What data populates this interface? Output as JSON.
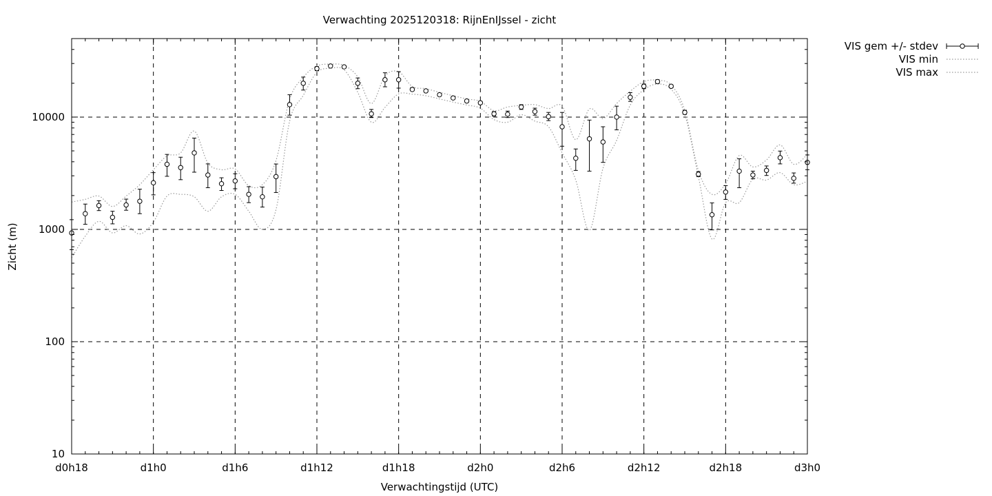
{
  "chart_data": {
    "type": "line",
    "title": "Verwachting 2025120318: RijnEnIJssel - zicht",
    "xlabel": "Verwachtingstijd (UTC)",
    "ylabel": "Zicht (m)",
    "xlim": [
      18,
      72
    ],
    "ylim": [
      10,
      50000
    ],
    "y_scale": "log",
    "grid": true,
    "legend_position": "outside-top-right",
    "x_ticks": [
      {
        "value": 18,
        "label": "d0h18"
      },
      {
        "value": 24,
        "label": "d1h0"
      },
      {
        "value": 30,
        "label": "d1h6"
      },
      {
        "value": 36,
        "label": "d1h12"
      },
      {
        "value": 42,
        "label": "d1h18"
      },
      {
        "value": 48,
        "label": "d2h0"
      },
      {
        "value": 54,
        "label": "d2h6"
      },
      {
        "value": 60,
        "label": "d2h12"
      },
      {
        "value": 66,
        "label": "d2h18"
      },
      {
        "value": 72,
        "label": "d3h0"
      }
    ],
    "y_ticks": [
      {
        "value": 10,
        "label": "10"
      },
      {
        "value": 100,
        "label": "100"
      },
      {
        "value": 1000,
        "label": "1000"
      },
      {
        "value": 10000,
        "label": "10000"
      }
    ],
    "x": [
      18,
      19,
      20,
      21,
      22,
      23,
      24,
      25,
      26,
      27,
      28,
      29,
      30,
      31,
      32,
      33,
      34,
      35,
      36,
      37,
      38,
      39,
      40,
      41,
      42,
      43,
      44,
      45,
      46,
      47,
      48,
      49,
      50,
      51,
      52,
      53,
      54,
      55,
      56,
      57,
      58,
      59,
      60,
      61,
      62,
      63,
      64,
      65,
      66,
      67,
      68,
      69,
      70,
      71,
      72
    ],
    "series": [
      {
        "name": "VIS gem +/- stdev",
        "style": "points-with-errorbars",
        "color": "#000000",
        "mean": [
          930,
          1380,
          1630,
          1280,
          1650,
          1780,
          2600,
          3800,
          3550,
          4800,
          3050,
          2550,
          2700,
          2050,
          1950,
          2950,
          12900,
          20000,
          27000,
          28500,
          28000,
          20000,
          10700,
          21500,
          21500,
          17600,
          17100,
          15800,
          14800,
          13900,
          13400,
          10700,
          10600,
          12300,
          11200,
          10100,
          8200,
          4300,
          6400,
          6000,
          10000,
          15000,
          18800,
          20700,
          18800,
          11000,
          3100,
          1350,
          2150,
          3300,
          3050,
          3350,
          4350,
          2850,
          3950
        ],
        "err_low": [
          660,
          1110,
          1470,
          1120,
          1480,
          1380,
          2030,
          2970,
          2770,
          3230,
          2350,
          2220,
          2300,
          1730,
          1580,
          2130,
          10400,
          17400,
          25900,
          27900,
          27300,
          17900,
          9900,
          18600,
          18100,
          17100,
          16700,
          15400,
          14400,
          13500,
          13000,
          10200,
          9900,
          11700,
          10400,
          9300,
          5500,
          3350,
          3300,
          3950,
          7700,
          13800,
          17900,
          19900,
          18200,
          10600,
          2950,
          990,
          1850,
          2350,
          2820,
          3020,
          3830,
          2580,
          3400
        ],
        "err_high": [
          1220,
          1680,
          1800,
          1450,
          1860,
          2280,
          3200,
          4650,
          4390,
          6500,
          3830,
          2880,
          3130,
          2400,
          2380,
          3820,
          15800,
          22700,
          28100,
          29200,
          28600,
          22300,
          11700,
          24800,
          25400,
          18300,
          17600,
          16300,
          15300,
          14300,
          13800,
          11200,
          11300,
          12900,
          12000,
          11000,
          11000,
          5200,
          9400,
          8200,
          12500,
          16500,
          19700,
          21500,
          19400,
          11500,
          3270,
          1720,
          2450,
          4250,
          3300,
          3670,
          4980,
          3180,
          4600
        ]
      },
      {
        "name": "VIS min",
        "style": "dotted",
        "color": "#999999",
        "values": [
          560,
          870,
          1180,
          930,
          1080,
          910,
          1160,
          1980,
          2050,
          1950,
          1450,
          1950,
          2050,
          1450,
          1000,
          1500,
          9200,
          15600,
          25000,
          27200,
          26300,
          16600,
          9000,
          12200,
          16100,
          16000,
          15500,
          14500,
          13600,
          12800,
          12000,
          9500,
          9000,
          10500,
          9200,
          8200,
          4800,
          2750,
          980,
          3500,
          6200,
          12800,
          17500,
          19700,
          17700,
          10600,
          2950,
          820,
          1730,
          1730,
          2800,
          2750,
          3200,
          2500,
          2680
        ]
      },
      {
        "name": "VIS max",
        "style": "dotted",
        "color": "#999999",
        "values": [
          1750,
          1850,
          1980,
          1600,
          1980,
          2500,
          3400,
          4500,
          4800,
          7500,
          3900,
          3400,
          3450,
          2450,
          2500,
          4100,
          14400,
          22600,
          28500,
          29600,
          28800,
          22800,
          13200,
          23200,
          25300,
          18700,
          17900,
          16600,
          15500,
          14500,
          13800,
          11400,
          12300,
          12700,
          12900,
          11900,
          12500,
          6300,
          11800,
          9700,
          13200,
          17000,
          20700,
          21300,
          19300,
          11500,
          3350,
          2050,
          2550,
          4550,
          3600,
          4150,
          5650,
          3800,
          4650
        ]
      }
    ]
  }
}
